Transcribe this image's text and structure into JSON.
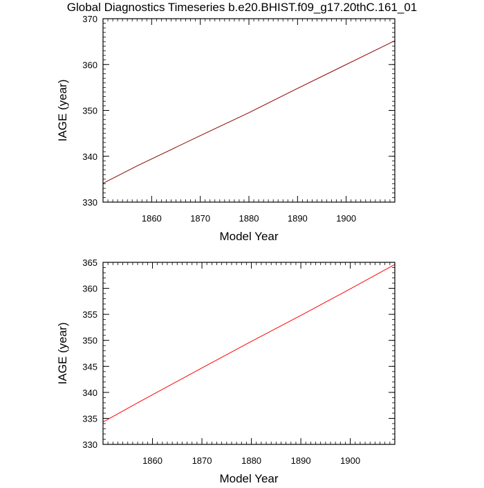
{
  "title": "Global Diagnostics Timeseries b.e20.BHIST.f09_g17.20thC.161_01",
  "chart_data": [
    {
      "type": "line",
      "xlabel": "Model Year",
      "ylabel": "IAGE (year)",
      "xlim": [
        1850,
        1910
      ],
      "ylim": [
        330,
        370
      ],
      "xticks": [
        1860,
        1870,
        1880,
        1890,
        1900
      ],
      "yticks": [
        330,
        340,
        350,
        360,
        370
      ],
      "grid": false,
      "series": [
        {
          "color": "#8b0000",
          "x": [
            1850,
            1857,
            1870,
            1880,
            1890,
            1900,
            1910
          ],
          "y": [
            334.1,
            337.9,
            344.5,
            349.5,
            354.8,
            360.0,
            365.2
          ]
        }
      ]
    },
    {
      "type": "line",
      "xlabel": "Model Year",
      "ylabel": "IAGE (year)",
      "xlim": [
        1850,
        1909
      ],
      "ylim": [
        330,
        365
      ],
      "xticks": [
        1860,
        1870,
        1880,
        1890,
        1900
      ],
      "yticks": [
        330,
        335,
        340,
        345,
        350,
        355,
        360,
        365
      ],
      "grid": false,
      "series": [
        {
          "color": "#ff0000",
          "x": [
            1850,
            1857,
            1870,
            1880,
            1890,
            1900,
            1909
          ],
          "y": [
            334.3,
            338.0,
            344.7,
            349.8,
            354.8,
            359.9,
            364.6
          ]
        }
      ]
    }
  ]
}
